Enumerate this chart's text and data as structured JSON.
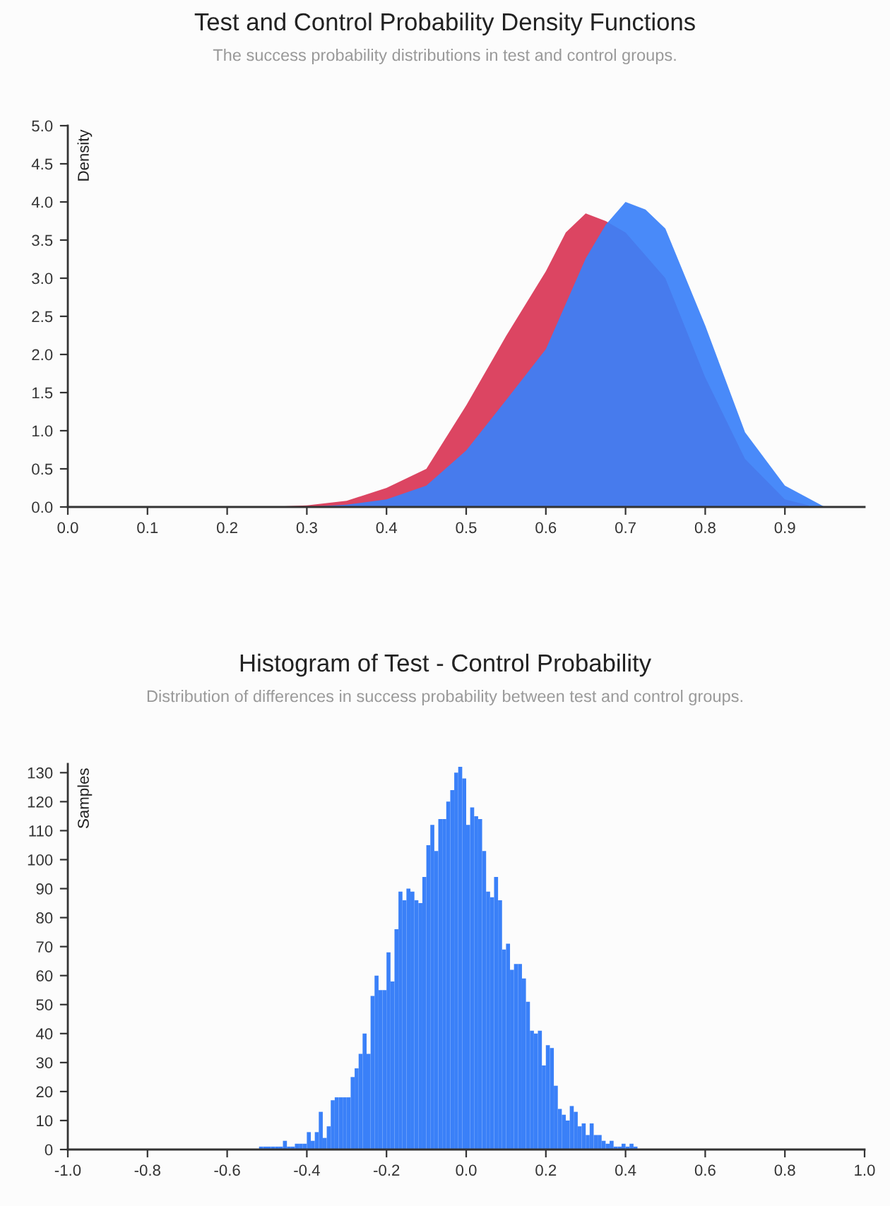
{
  "chart_data": [
    {
      "type": "area",
      "title": "Test and Control Probability Density Functions",
      "subtitle": "The success probability distributions in test and control groups.",
      "ylabel": "Density",
      "series": [
        {
          "color": "#dc4562",
          "x": [
            0.25,
            0.3,
            0.35,
            0.4,
            0.45,
            0.5,
            0.55,
            0.6,
            0.625,
            0.65,
            0.675,
            0.7,
            0.75,
            0.8,
            0.85,
            0.9,
            0.93
          ],
          "values": [
            0,
            0.02,
            0.08,
            0.25,
            0.5,
            1.33,
            2.24,
            3.09,
            3.6,
            3.85,
            3.75,
            3.6,
            3.0,
            1.7,
            0.63,
            0.1,
            0.02
          ]
        },
        {
          "color": "#3a80f8",
          "x": [
            0.3,
            0.35,
            0.4,
            0.45,
            0.5,
            0.55,
            0.6,
            0.65,
            0.675,
            0.7,
            0.725,
            0.75,
            0.8,
            0.85,
            0.9,
            0.95
          ],
          "values": [
            0,
            0.03,
            0.1,
            0.28,
            0.74,
            1.4,
            2.07,
            3.26,
            3.7,
            4.0,
            3.9,
            3.65,
            2.38,
            0.98,
            0.28,
            0
          ]
        }
      ],
      "xlim": [
        0,
        1
      ],
      "ylim": [
        0,
        5
      ],
      "xticks": [
        {
          "value": 0,
          "label": "0.0"
        },
        0.1,
        0.2,
        0.3,
        0.4,
        0.5,
        0.6,
        0.7,
        0.8,
        0.9
      ],
      "yticks": [
        {
          "value": 0,
          "label": "0.0"
        },
        0.5,
        {
          "value": 1,
          "label": "1.0"
        },
        1.5,
        {
          "value": 2,
          "label": "2.0"
        },
        2.5,
        {
          "value": 3,
          "label": "3.0"
        },
        3.5,
        {
          "value": 4,
          "label": "4.0"
        },
        4.5,
        {
          "value": 5,
          "label": "5.0"
        }
      ],
      "grid": false,
      "legend": false
    },
    {
      "type": "histogram",
      "title": "Histogram of Test - Control Probability",
      "subtitle": "Distribution of differences in success probability between test and control groups.",
      "ylabel": "Samples",
      "color": "#3a80f8",
      "bins": [
        -0.52,
        -0.51,
        -0.5,
        -0.49,
        -0.48,
        -0.47,
        -0.46,
        -0.45,
        -0.44,
        -0.43,
        -0.42,
        -0.41,
        -0.4,
        -0.39,
        -0.38,
        -0.37,
        -0.36,
        -0.35,
        -0.34,
        -0.33,
        -0.32,
        -0.31,
        -0.3,
        -0.29,
        -0.28,
        -0.27,
        -0.26,
        -0.25,
        -0.24,
        -0.23,
        -0.22,
        -0.21,
        -0.2,
        -0.19,
        -0.18,
        -0.17,
        -0.16,
        -0.15,
        -0.14,
        -0.13,
        -0.12,
        -0.11,
        -0.1,
        -0.09,
        -0.08,
        -0.07,
        -0.06,
        -0.05,
        -0.04,
        -0.03,
        -0.02,
        -0.01,
        0,
        0.01,
        0.02,
        0.03,
        0.04,
        0.05,
        0.06,
        0.07,
        0.08,
        0.09,
        0.1,
        0.11,
        0.12,
        0.13,
        0.14,
        0.15,
        0.16,
        0.17,
        0.18,
        0.19,
        0.2,
        0.21,
        0.22,
        0.23,
        0.24,
        0.25,
        0.26,
        0.27,
        0.28,
        0.29,
        0.3,
        0.31,
        0.32,
        0.33,
        0.34,
        0.35,
        0.36,
        0.37,
        0.38,
        0.39,
        0.4,
        0.41,
        0.42,
        0.43
      ],
      "values": [
        1,
        1,
        1,
        1,
        1,
        1,
        3,
        1,
        1,
        2,
        2,
        2,
        6,
        3,
        6,
        13,
        4,
        8,
        17,
        18,
        18,
        18,
        18,
        25,
        28,
        33,
        40,
        33,
        53,
        60,
        55,
        55,
        68,
        58,
        76,
        89,
        86,
        90,
        89,
        86,
        85,
        94,
        105,
        112,
        103,
        114,
        114,
        120,
        124,
        130,
        132,
        128,
        112,
        118,
        115,
        114,
        103,
        89,
        87,
        94,
        86,
        69,
        71,
        62,
        64,
        64,
        59,
        51,
        41,
        40,
        41,
        29,
        36,
        35,
        22,
        14,
        12,
        10,
        15,
        13,
        8,
        9,
        5,
        9,
        5,
        5,
        3,
        2,
        3,
        1,
        1,
        2,
        1,
        2,
        1
      ],
      "xlim": [
        -1,
        1
      ],
      "ylim": [
        0,
        133
      ],
      "xticks": [
        {
          "value": -1,
          "label": "-1.0"
        },
        -0.8,
        -0.6,
        -0.4,
        -0.2,
        {
          "value": 0,
          "label": "0.0"
        },
        0.2,
        0.4,
        0.6,
        0.8,
        {
          "value": 1,
          "label": "1.0"
        }
      ],
      "yticks": [
        0,
        10,
        20,
        30,
        40,
        50,
        60,
        70,
        80,
        90,
        100,
        110,
        120,
        130
      ],
      "grid": false,
      "legend": false
    }
  ]
}
